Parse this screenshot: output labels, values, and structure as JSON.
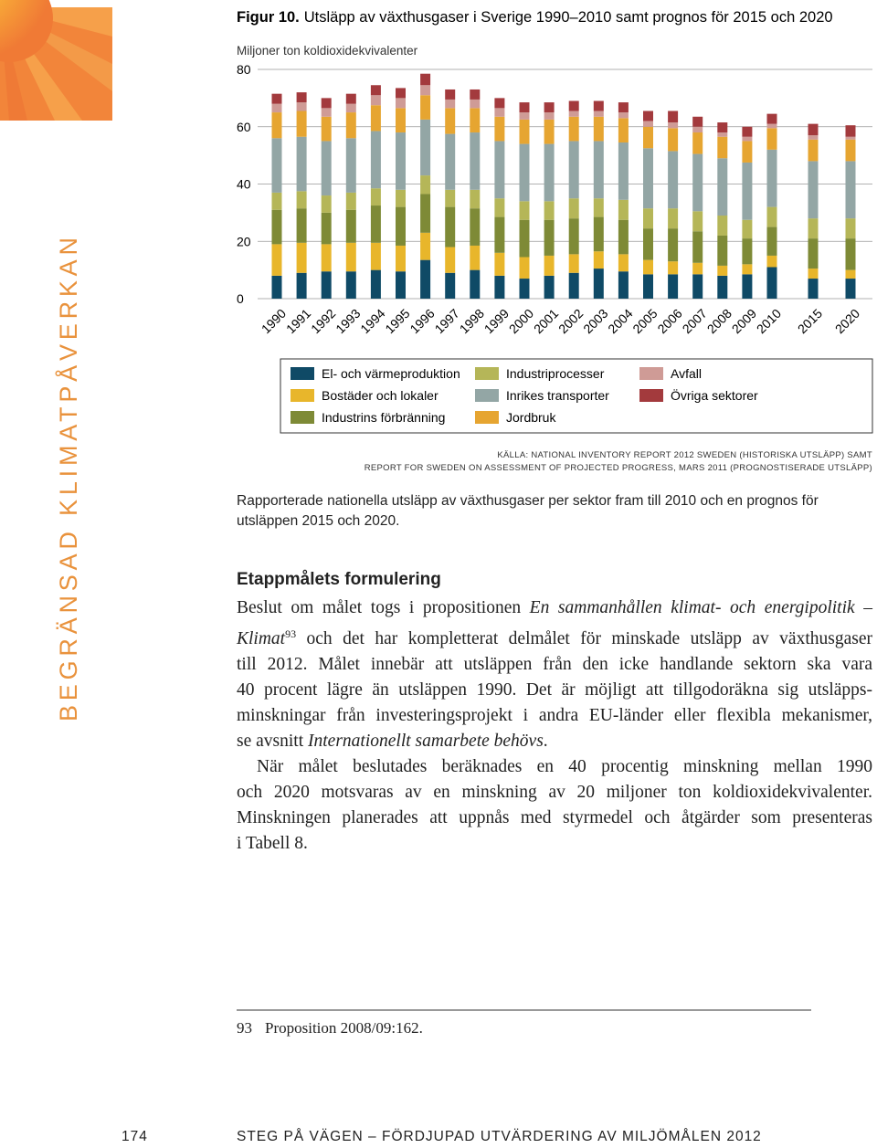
{
  "side_label": "BEGRÄNSAD KLIMATPÅVERKAN",
  "chart_data": {
    "type": "bar",
    "stacked": true,
    "figure_label": "Figur 10.",
    "title": "Utsläpp av växthusgaser i Sverige 1990–2010 samt prognos för 2015 och 2020",
    "y_label": "Miljoner ton koldioxidekvivalenter",
    "categories": [
      "1990",
      "1991",
      "1992",
      "1993",
      "1994",
      "1995",
      "1996",
      "1997",
      "1998",
      "1999",
      "2000",
      "2001",
      "2002",
      "2003",
      "2004",
      "2005",
      "2006",
      "2007",
      "2008",
      "2009",
      "2010",
      "2015",
      "2020"
    ],
    "ylim": [
      0,
      80
    ],
    "yticks": [
      0,
      20,
      40,
      60,
      80
    ],
    "grid": true,
    "series": [
      {
        "name": "El- och värmeproduktion",
        "color": "#0f4a66",
        "values": [
          8,
          9,
          9.5,
          9.5,
          10,
          9.5,
          13.5,
          9,
          10,
          8,
          7,
          8,
          9,
          10.5,
          9.5,
          8.5,
          8.5,
          8.5,
          8,
          8.5,
          11,
          7,
          7
        ]
      },
      {
        "name": "Bostäder och lokaler",
        "color": "#e8b62b",
        "values": [
          11,
          10.5,
          9.5,
          10,
          9.5,
          9,
          9.5,
          9,
          8.5,
          8,
          7.5,
          7,
          6.5,
          6,
          6,
          5,
          4.5,
          4,
          3.5,
          3.5,
          4,
          3.5,
          3
        ]
      },
      {
        "name": "Industrins förbränning",
        "color": "#7e8a36",
        "values": [
          12,
          12,
          11,
          11.5,
          13,
          13.5,
          13.5,
          14,
          13,
          12.5,
          13,
          12.5,
          12.5,
          12,
          12,
          11,
          11.5,
          11,
          10.5,
          9,
          10,
          10.5,
          11
        ]
      },
      {
        "name": "Industriprocesser",
        "color": "#b5b658",
        "values": [
          6,
          6,
          6,
          6,
          6,
          6,
          6.5,
          6,
          6.5,
          6.5,
          6.5,
          6.5,
          7,
          6.5,
          7,
          7,
          7,
          7,
          7,
          6.5,
          7,
          7,
          7
        ]
      },
      {
        "name": "Inrikes transporter",
        "color": "#93a6a5",
        "values": [
          19,
          19,
          19,
          19,
          20,
          20,
          19.5,
          19.5,
          20,
          20,
          20,
          20,
          20,
          20,
          20,
          21,
          20,
          20,
          20,
          20,
          20,
          20,
          20
        ]
      },
      {
        "name": "Jordbruk",
        "color": "#e6a531",
        "values": [
          9,
          9,
          8.5,
          9,
          9,
          8.5,
          8.5,
          9,
          8.5,
          8.5,
          8.5,
          8.5,
          8.5,
          8.5,
          8.5,
          7.5,
          8,
          7.5,
          7.5,
          7.5,
          7.5,
          7.5,
          7.5
        ]
      },
      {
        "name": "Avfall",
        "color": "#cf9b96",
        "values": [
          3,
          3,
          3,
          3,
          3.5,
          3.5,
          3.5,
          3,
          3,
          3,
          2.5,
          2.5,
          2,
          2,
          2,
          2,
          2,
          2,
          1.5,
          1.5,
          1.5,
          1.5,
          1
        ]
      },
      {
        "name": "Övriga sektorer",
        "color": "#a33a3d",
        "values": [
          3.5,
          3.5,
          3.5,
          3.5,
          3.5,
          3.5,
          4,
          3.5,
          3.5,
          3.5,
          3.5,
          3.5,
          3.5,
          3.5,
          3.5,
          3.5,
          4,
          3.5,
          3.5,
          3.5,
          3.5,
          4,
          4
        ]
      }
    ],
    "source": [
      "KÄLLA: NATIONAL INVENTORY REPORT 2012 SWEDEN (HISTORISKA UTSLÄPP) SAMT",
      "REPORT FOR SWEDEN ON ASSESSMENT OF PROJECTED PROGRESS, MARS 2011 (PROGNOSTISERADE UTSLÄPP)"
    ]
  },
  "caption": "Rapporterade nationella utsläpp av växthusgaser per sektor fram till 2010 och en prognos för utsläppen 2015 och 2020.",
  "heading": "Etappmålets formulering",
  "body": [
    [
      [
        {
          "text": "Beslut om målet togs i propositionen "
        },
        {
          "text": "En sammanhållen klimat- och energipolitik –",
          "style": "italic"
        }
      ],
      [
        {
          "text": "Klimat",
          "style": "italic"
        },
        {
          "text": "93",
          "style": "sup"
        },
        {
          "text": " och det har kompletterat delmålet för minskade utsläpp av växthusgaser"
        }
      ],
      [
        {
          "text": "till 2012. Målet innebär att utsläppen från den icke handlande sektorn ska vara"
        }
      ],
      [
        {
          "text": "40 procent lägre än utsläppen 1990. Det är möjligt att tillgodoräkna sig utsläpps-"
        }
      ],
      [
        {
          "text": "minskningar från investeringsprojekt i andra EU-länder eller flexibla mekanismer,"
        }
      ],
      [
        {
          "text": "se avsnitt "
        },
        {
          "text": "Internationellt samarbete behövs",
          "style": "italic"
        },
        {
          "text": "."
        }
      ]
    ],
    [
      [
        {
          "text": "När målet beslutades beräknades en 40 procentig minskning mellan 1990"
        }
      ],
      [
        {
          "text": "och 2020 motsvaras av en minskning av 20 miljoner ton koldioxidekvivalenter."
        }
      ],
      [
        {
          "text": "Minskningen planerades att uppnås med styrmedel och åtgärder som presenteras"
        }
      ],
      [
        {
          "text": "i Tabell 8."
        }
      ]
    ]
  ],
  "footnote": {
    "number": "93",
    "text": "Proposition 2008/09:162."
  },
  "footer": {
    "page": "174",
    "text": "STEG PÅ VÄGEN – FÖRDJUPAD UTVÄRDERING AV MILJÖMÅLEN 2012"
  }
}
